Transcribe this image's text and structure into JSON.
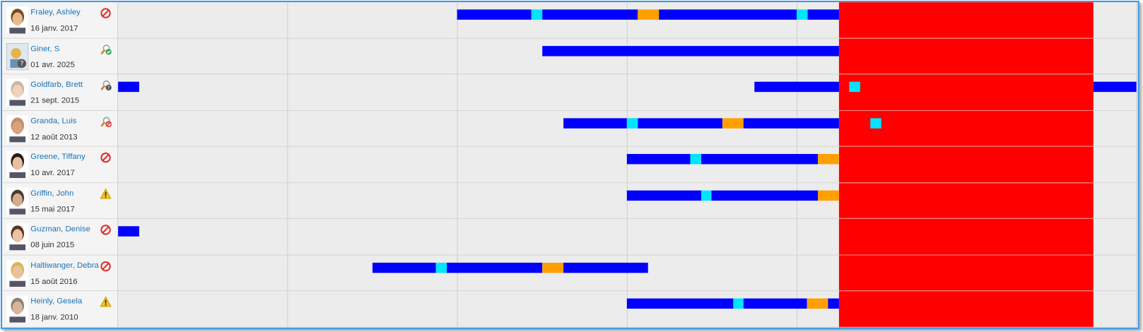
{
  "rows": [
    {
      "name": "Fraley, Ashley",
      "date": "16 janv. 2017"
    },
    {
      "name": "Giner, S",
      "date": "01 avr. 2025"
    },
    {
      "name": "Goldfarb, Brett",
      "date": "21 sept. 2015"
    },
    {
      "name": "Granda, Luis",
      "date": "12 août 2013"
    },
    {
      "name": "Greene, Tiffany",
      "date": "10 avr. 2017"
    },
    {
      "name": "Griffin, John",
      "date": "15 mai 2017"
    },
    {
      "name": "Guzman, Denise",
      "date": "08 juin 2015"
    },
    {
      "name": "Haltiwanger, Debra",
      "date": "15 août 2016"
    },
    {
      "name": "Heinly, Gesela",
      "date": "18 janv. 2010"
    }
  ]
}
